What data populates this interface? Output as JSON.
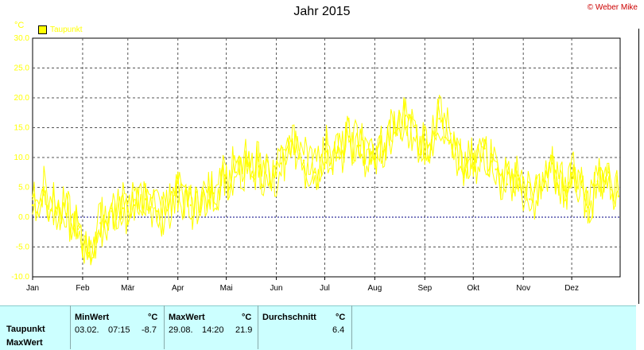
{
  "title": "Jahr 2015",
  "copyright": "© Weber Mike",
  "unit": "°C",
  "legend": {
    "label": "Taupunkt"
  },
  "chart_data": {
    "type": "line",
    "title": "Jahr 2015",
    "ylabel": "°C",
    "ylim": [
      -10,
      30
    ],
    "yticks": [
      "30.0",
      "25.0",
      "20.0",
      "15.0",
      "10.0",
      "5.0",
      "0.0",
      "-5.0",
      "-10.0"
    ],
    "xticks": [
      "Jan",
      "Feb",
      "Mär",
      "Apr",
      "Mai",
      "Jun",
      "Jul",
      "Aug",
      "Sep",
      "Okt",
      "Nov",
      "Dez"
    ],
    "grid": true,
    "legend_position": "top-left",
    "colors": {
      "series": "#ffff00",
      "plot_bg": "#ffffff",
      "grid": "#555555",
      "zero_line": "#000080"
    },
    "series": [
      {
        "name": "Taupunkt",
        "x_day": [
          1,
          8,
          15,
          22,
          29,
          36,
          43,
          50,
          57,
          64,
          71,
          78,
          85,
          92,
          99,
          106,
          113,
          120,
          127,
          134,
          141,
          148,
          155,
          162,
          169,
          176,
          183,
          190,
          197,
          204,
          211,
          218,
          225,
          232,
          239,
          246,
          253,
          260,
          267,
          274,
          281,
          288,
          295,
          302,
          309,
          316,
          323,
          330,
          337,
          344,
          351,
          358,
          364
        ],
        "values": [
          2.0,
          5.0,
          1.0,
          0.5,
          -2.0,
          -6.0,
          -1.0,
          1.0,
          1.5,
          2.0,
          3.0,
          1.0,
          2.0,
          4.5,
          2.0,
          3.5,
          4.0,
          7.0,
          7.5,
          9.0,
          8.5,
          6.0,
          9.0,
          12.5,
          9.5,
          7.5,
          11.0,
          10.0,
          13.5,
          12.0,
          9.5,
          11.0,
          15.0,
          17.0,
          13.5,
          12.0,
          16.5,
          14.0,
          8.0,
          9.0,
          11.5,
          8.0,
          5.5,
          7.0,
          3.0,
          5.0,
          9.0,
          4.5,
          8.0,
          1.0,
          6.0,
          7.5,
          3.5
        ]
      }
    ],
    "stats": {
      "row_labels": [
        "Taupunkt",
        "MaxWert"
      ],
      "min": {
        "header": "MinWert",
        "unit": "°C",
        "date": "03.02.",
        "time": "07:15",
        "value": "-8.7"
      },
      "max": {
        "header": "MaxWert",
        "unit": "°C",
        "date": "29.08.",
        "time": "14:20",
        "value": "21.9"
      },
      "avg": {
        "header": "Durchschnitt",
        "unit": "°C",
        "value": "6.4"
      }
    }
  }
}
